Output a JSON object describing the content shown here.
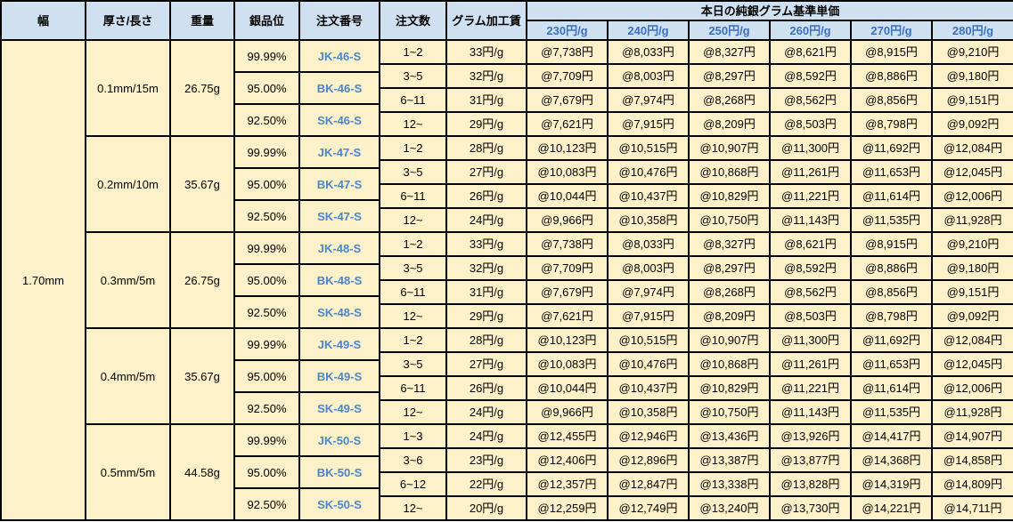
{
  "colors": {
    "header_bg": "#cfe1f1",
    "body_bg": "#fdf1c9",
    "grid_line": "#000000",
    "tier_text": "#3a70c2",
    "order_no_text": "#4a86ce",
    "text": "#000000"
  },
  "header": {
    "width": "幅",
    "thickness": "厚さ/長さ",
    "weight": "重量",
    "purity": "銀品位",
    "order_no": "注文番号",
    "qty": "注文数",
    "fee": "グラム加工賃",
    "price_group": "本日の純銀グラム基準単価",
    "tiers": [
      "230円/g",
      "240円/g",
      "250円/g",
      "260円/g",
      "270円/g",
      "280円/g"
    ]
  },
  "width_value": "1.70mm",
  "blocks": [
    {
      "thickness": "0.1mm/15m",
      "weight": "26.75g",
      "variants": [
        {
          "purity": "99.99%",
          "order_no": "JK-46-S"
        },
        {
          "purity": "95.00%",
          "order_no": "BK-46-S"
        },
        {
          "purity": "92.50%",
          "order_no": "SK-46-S"
        }
      ],
      "tiers": [
        {
          "qty": "1~2",
          "fee": "33円/g",
          "prices": [
            "@7,738円",
            "@8,033円",
            "@8,327円",
            "@8,621円",
            "@8,915円",
            "@9,210円"
          ]
        },
        {
          "qty": "3~5",
          "fee": "32円/g",
          "prices": [
            "@7,709円",
            "@8,003円",
            "@8,297円",
            "@8,592円",
            "@8,886円",
            "@9,180円"
          ]
        },
        {
          "qty": "6~11",
          "fee": "31円/g",
          "prices": [
            "@7,679円",
            "@7,974円",
            "@8,268円",
            "@8,562円",
            "@8,856円",
            "@9,151円"
          ]
        },
        {
          "qty": "12~",
          "fee": "29円/g",
          "prices": [
            "@7,621円",
            "@7,915円",
            "@8,209円",
            "@8,503円",
            "@8,798円",
            "@9,092円"
          ]
        }
      ]
    },
    {
      "thickness": "0.2mm/10m",
      "weight": "35.67g",
      "variants": [
        {
          "purity": "99.99%",
          "order_no": "JK-47-S"
        },
        {
          "purity": "95.00%",
          "order_no": "BK-47-S"
        },
        {
          "purity": "92.50%",
          "order_no": "SK-47-S"
        }
      ],
      "tiers": [
        {
          "qty": "1~2",
          "fee": "28円/g",
          "prices": [
            "@10,123円",
            "@10,515円",
            "@10,907円",
            "@11,300円",
            "@11,692円",
            "@12,084円"
          ]
        },
        {
          "qty": "3~5",
          "fee": "27円/g",
          "prices": [
            "@10,083円",
            "@10,476円",
            "@10,868円",
            "@11,261円",
            "@11,653円",
            "@12,045円"
          ]
        },
        {
          "qty": "6~11",
          "fee": "26円/g",
          "prices": [
            "@10,044円",
            "@10,437円",
            "@10,829円",
            "@11,221円",
            "@11,614円",
            "@12,006円"
          ]
        },
        {
          "qty": "12~",
          "fee": "24円/g",
          "prices": [
            "@9,966円",
            "@10,358円",
            "@10,750円",
            "@11,143円",
            "@11,535円",
            "@11,928円"
          ]
        }
      ]
    },
    {
      "thickness": "0.3mm/5m",
      "weight": "26.75g",
      "variants": [
        {
          "purity": "99.99%",
          "order_no": "JK-48-S"
        },
        {
          "purity": "95.00%",
          "order_no": "BK-48-S"
        },
        {
          "purity": "92.50%",
          "order_no": "SK-48-S"
        }
      ],
      "tiers": [
        {
          "qty": "1~2",
          "fee": "33円/g",
          "prices": [
            "@7,738円",
            "@8,033円",
            "@8,327円",
            "@8,621円",
            "@8,915円",
            "@9,210円"
          ]
        },
        {
          "qty": "3~5",
          "fee": "32円/g",
          "prices": [
            "@7,709円",
            "@8,003円",
            "@8,297円",
            "@8,592円",
            "@8,886円",
            "@9,180円"
          ]
        },
        {
          "qty": "6~11",
          "fee": "31円/g",
          "prices": [
            "@7,679円",
            "@7,974円",
            "@8,268円",
            "@8,562円",
            "@8,856円",
            "@9,151円"
          ]
        },
        {
          "qty": "12~",
          "fee": "29円/g",
          "prices": [
            "@7,621円",
            "@7,915円",
            "@8,209円",
            "@8,503円",
            "@8,798円",
            "@9,092円"
          ]
        }
      ]
    },
    {
      "thickness": "0.4mm/5m",
      "weight": "35.67g",
      "variants": [
        {
          "purity": "99.99%",
          "order_no": "JK-49-S"
        },
        {
          "purity": "95.00%",
          "order_no": "BK-49-S"
        },
        {
          "purity": "92.50%",
          "order_no": "SK-49-S"
        }
      ],
      "tiers": [
        {
          "qty": "1~2",
          "fee": "28円/g",
          "prices": [
            "@10,123円",
            "@10,515円",
            "@10,907円",
            "@11,300円",
            "@11,692円",
            "@12,084円"
          ]
        },
        {
          "qty": "3~5",
          "fee": "27円/g",
          "prices": [
            "@10,083円",
            "@10,476円",
            "@10,868円",
            "@11,261円",
            "@11,653円",
            "@12,045円"
          ]
        },
        {
          "qty": "6~11",
          "fee": "26円/g",
          "prices": [
            "@10,044円",
            "@10,437円",
            "@10,829円",
            "@11,221円",
            "@11,614円",
            "@12,006円"
          ]
        },
        {
          "qty": "12~",
          "fee": "24円/g",
          "prices": [
            "@9,966円",
            "@10,358円",
            "@10,750円",
            "@11,143円",
            "@11,535円",
            "@11,928円"
          ]
        }
      ]
    },
    {
      "thickness": "0.5mm/5m",
      "weight": "44.58g",
      "variants": [
        {
          "purity": "99.99%",
          "order_no": "JK-50-S"
        },
        {
          "purity": "95.00%",
          "order_no": "BK-50-S"
        },
        {
          "purity": "92.50%",
          "order_no": "SK-50-S"
        }
      ],
      "tiers": [
        {
          "qty": "1~3",
          "fee": "24円/g",
          "prices": [
            "@12,455円",
            "@12,946円",
            "@13,436円",
            "@13,926円",
            "@14,417円",
            "@14,907円"
          ]
        },
        {
          "qty": "3~6",
          "fee": "23円/g",
          "prices": [
            "@12,406円",
            "@12,896円",
            "@13,387円",
            "@13,877円",
            "@14,368円",
            "@14,858円"
          ]
        },
        {
          "qty": "6~12",
          "fee": "22円/g",
          "prices": [
            "@12,357円",
            "@12,847円",
            "@13,338円",
            "@13,828円",
            "@14,319円",
            "@14,809円"
          ]
        },
        {
          "qty": "12~",
          "fee": "20円/g",
          "prices": [
            "@12,259円",
            "@12,749円",
            "@13,240円",
            "@13,730円",
            "@14,221円",
            "@14,711円"
          ]
        }
      ]
    }
  ]
}
